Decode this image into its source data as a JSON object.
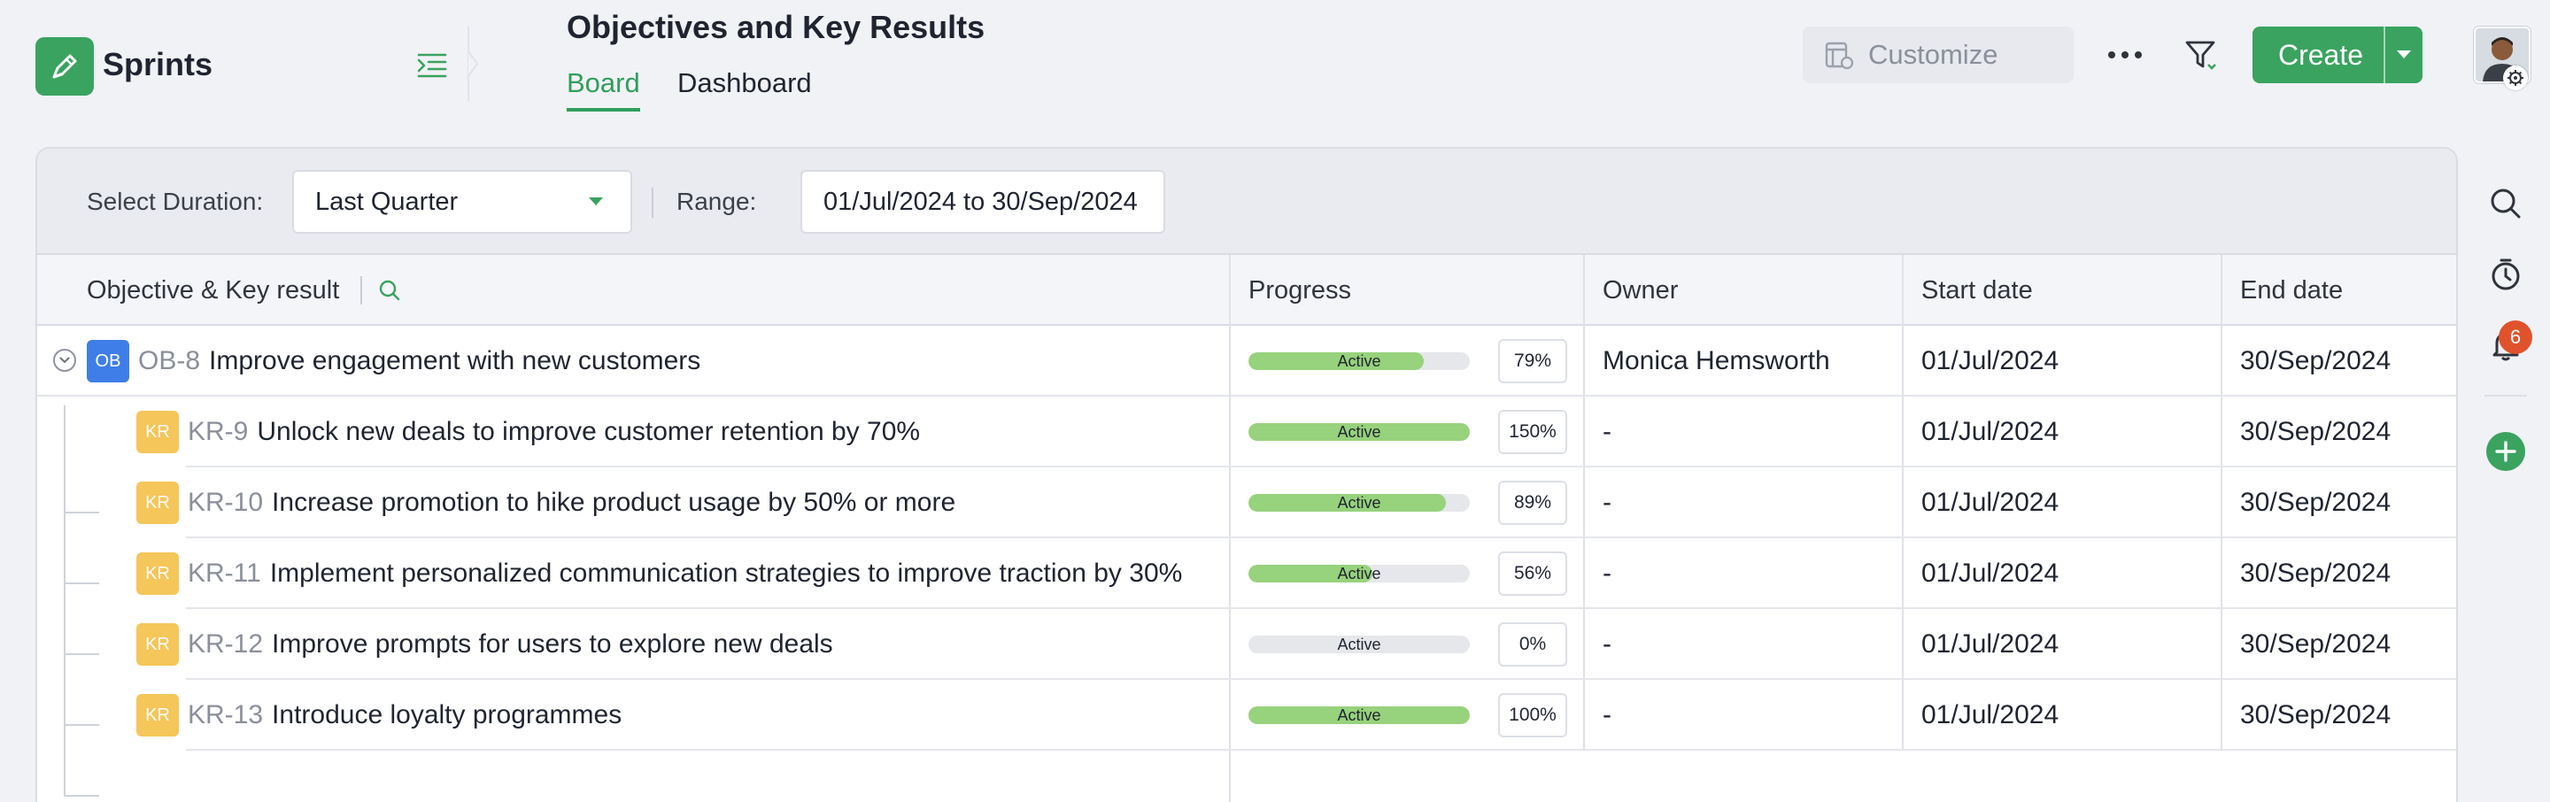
{
  "app": {
    "name": "Sprints"
  },
  "header": {
    "title": "Objectives and Key Results",
    "tabs": [
      {
        "label": "Board",
        "active": true
      },
      {
        "label": "Dashboard",
        "active": false
      }
    ],
    "customize_label": "Customize",
    "create_label": "Create"
  },
  "notifications": {
    "count": "6"
  },
  "filters": {
    "duration_label": "Select Duration:",
    "duration_value": "Last Quarter",
    "range_label": "Range:",
    "range_value": "01/Jul/2024 to 30/Sep/2024"
  },
  "table": {
    "columns": [
      "Objective & Key result",
      "Progress",
      "Owner",
      "Start date",
      "End date"
    ],
    "rows": [
      {
        "type": "OB",
        "id": "OB-8",
        "title": "Improve engagement with new customers",
        "status": "Active",
        "progress": 79,
        "progress_label": "79%",
        "owner": "Monica Hemsworth",
        "start": "01/Jul/2024",
        "end": "30/Sep/2024"
      },
      {
        "type": "KR",
        "id": "KR-9",
        "title": "Unlock new deals to improve customer retention by 70%",
        "status": "Active",
        "progress": 150,
        "progress_label": "150%",
        "owner": "-",
        "start": "01/Jul/2024",
        "end": "30/Sep/2024"
      },
      {
        "type": "KR",
        "id": "KR-10",
        "title": "Increase promotion to hike product usage by 50% or more",
        "status": "Active",
        "progress": 89,
        "progress_label": "89%",
        "owner": "-",
        "start": "01/Jul/2024",
        "end": "30/Sep/2024"
      },
      {
        "type": "KR",
        "id": "KR-11",
        "title": "Implement personalized communication strategies to improve traction by 30%",
        "status": "Active",
        "progress": 56,
        "progress_label": "56%",
        "owner": "-",
        "start": "01/Jul/2024",
        "end": "30/Sep/2024"
      },
      {
        "type": "KR",
        "id": "KR-12",
        "title": "Improve prompts for users to explore new deals",
        "status": "Active",
        "progress": 0,
        "progress_label": "0%",
        "owner": "-",
        "start": "01/Jul/2024",
        "end": "30/Sep/2024"
      },
      {
        "type": "KR",
        "id": "KR-13",
        "title": "Introduce loyalty programmes",
        "status": "Active",
        "progress": 100,
        "progress_label": "100%",
        "owner": "-",
        "start": "01/Jul/2024",
        "end": "30/Sep/2024"
      }
    ]
  },
  "colors": {
    "accent": "#3aa35f",
    "objective_badge": "#3f7ee8",
    "kr_badge": "#f5c659",
    "progress_fill": "#97d27c",
    "badge_red": "#e0522c"
  },
  "icons": {
    "app_logo": "pen-icon",
    "collapse": "indent-list-icon",
    "customize": "layout-icon",
    "more": "ellipsis-icon",
    "filter": "filter-icon",
    "create_caret": "caret-down-icon",
    "rail": [
      "search-icon",
      "timer-icon",
      "bell-icon",
      "add-circle-icon"
    ]
  }
}
